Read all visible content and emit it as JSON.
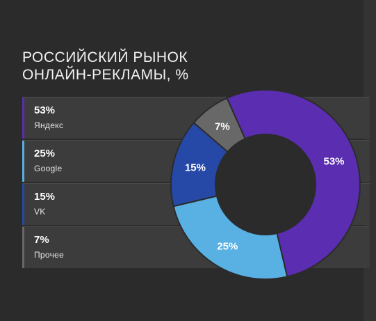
{
  "title": {
    "line1": "РОССИЙСКИЙ РЫНОК",
    "line2": "ОНЛАЙН-РЕКЛАМЫ, %"
  },
  "chart_data": {
    "type": "pie",
    "title": "РОССИЙСКИЙ РЫНОК ОНЛАЙН-РЕКЛАМЫ, %",
    "categories": [
      "Яндекс",
      "Google",
      "VK",
      "Прочее"
    ],
    "values": [
      53,
      25,
      15,
      7
    ],
    "labels": [
      "53%",
      "25%",
      "15%",
      "7%"
    ],
    "colors": [
      "#5b2db0",
      "#58b0e3",
      "#2649a8",
      "#686869"
    ],
    "legend_placement": "left"
  }
}
